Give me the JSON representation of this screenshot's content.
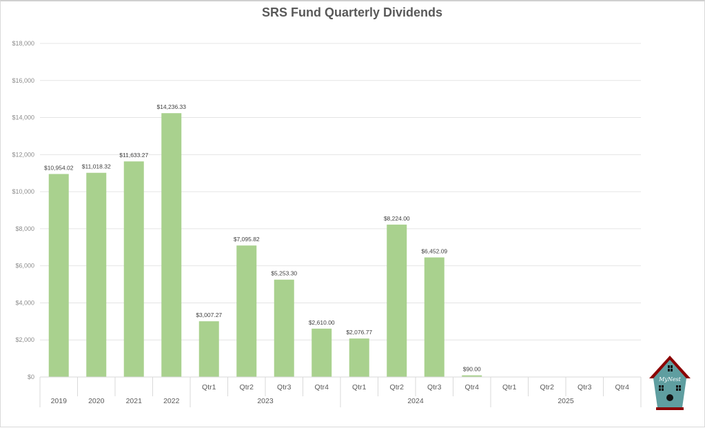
{
  "chart_data": {
    "type": "bar",
    "title": "SRS Fund Quarterly Dividends",
    "xlabel": "",
    "ylabel": "",
    "ylim": [
      0,
      18000
    ],
    "ytick_step": 2000,
    "ytick_labels": [
      "$0",
      "$2,000",
      "$4,000",
      "$6,000",
      "$8,000",
      "$10,000",
      "$12,000",
      "$14,000",
      "$16,000",
      "$18,000"
    ],
    "grid": true,
    "legend": "none",
    "bar_color": "#a9d18e",
    "categories": [
      {
        "label": "2019",
        "group": ""
      },
      {
        "label": "2020",
        "group": ""
      },
      {
        "label": "2021",
        "group": ""
      },
      {
        "label": "2022",
        "group": ""
      },
      {
        "label": "Qtr1",
        "group": "2023"
      },
      {
        "label": "Qtr2",
        "group": "2023"
      },
      {
        "label": "Qtr3",
        "group": "2023"
      },
      {
        "label": "Qtr4",
        "group": "2023"
      },
      {
        "label": "Qtr1",
        "group": "2024"
      },
      {
        "label": "Qtr2",
        "group": "2024"
      },
      {
        "label": "Qtr3",
        "group": "2024"
      },
      {
        "label": "Qtr4",
        "group": "2024"
      },
      {
        "label": "Qtr1",
        "group": "2025"
      },
      {
        "label": "Qtr2",
        "group": "2025"
      },
      {
        "label": "Qtr3",
        "group": "2025"
      },
      {
        "label": "Qtr4",
        "group": "2025"
      }
    ],
    "values": [
      10954.02,
      11018.32,
      11633.27,
      14236.33,
      3007.27,
      7095.82,
      5253.3,
      2610.0,
      2076.77,
      8224.0,
      6452.09,
      90.0,
      null,
      null,
      null,
      null
    ],
    "data_labels": [
      "$10,954.02",
      "$11,018.32",
      "$11,633.27",
      "$14,236.33",
      "$3,007.27",
      "$7,095.82",
      "$5,253.30",
      "$2,610.00",
      "$2,076.77",
      "$8,224.00",
      "$6,452.09",
      "$90.00",
      "",
      "",
      "",
      ""
    ],
    "groups": [
      "2023",
      "2024",
      "2025"
    ]
  },
  "logo": {
    "text": "MyNest",
    "colors": {
      "body": "#5f9ea0",
      "roof": "#8b0000"
    }
  }
}
